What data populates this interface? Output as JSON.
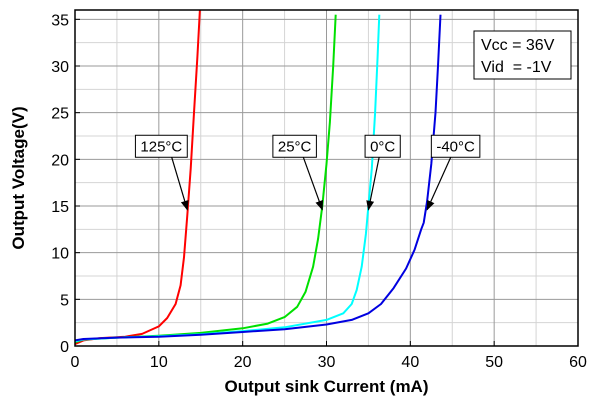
{
  "chart_data": {
    "type": "line",
    "title": "",
    "xlabel": "Output sink Current (mA)",
    "ylabel": "Output Voltage(V)",
    "xlim": [
      0,
      60
    ],
    "ylim": [
      0,
      36
    ],
    "x_ticks": [
      0,
      10,
      20,
      30,
      40,
      50,
      60
    ],
    "y_ticks": [
      0,
      5,
      10,
      15,
      20,
      25,
      30,
      35
    ],
    "x_minor_step": 5,
    "y_minor_step": 2.5,
    "grid": true,
    "legend": "none",
    "info_box": [
      "Vcc = 36V",
      "Vid  = -1V"
    ],
    "series": [
      {
        "label": "125°C",
        "color": "#ff0000",
        "points": [
          [
            0,
            0.2
          ],
          [
            1,
            0.6
          ],
          [
            3,
            0.85
          ],
          [
            6,
            1.0
          ],
          [
            8,
            1.3
          ],
          [
            10,
            2.1
          ],
          [
            11,
            3.0
          ],
          [
            12,
            4.5
          ],
          [
            12.6,
            6.5
          ],
          [
            13,
            9.5
          ],
          [
            13.4,
            14
          ],
          [
            13.8,
            19
          ],
          [
            14.2,
            25
          ],
          [
            14.6,
            31
          ],
          [
            14.9,
            36
          ]
        ]
      },
      {
        "label": "25°C",
        "color": "#00e000",
        "points": [
          [
            0,
            0.4
          ],
          [
            1,
            0.7
          ],
          [
            5,
            0.9
          ],
          [
            10,
            1.1
          ],
          [
            15,
            1.4
          ],
          [
            20,
            1.9
          ],
          [
            23,
            2.4
          ],
          [
            25,
            3.1
          ],
          [
            26.5,
            4.2
          ],
          [
            27.5,
            5.8
          ],
          [
            28.4,
            8.5
          ],
          [
            29,
            11.5
          ],
          [
            29.5,
            15
          ],
          [
            30,
            19.5
          ],
          [
            30.4,
            24
          ],
          [
            30.8,
            30
          ],
          [
            31.1,
            35.5
          ]
        ]
      },
      {
        "label": "0°C",
        "color": "#00ffff",
        "points": [
          [
            0,
            0.5
          ],
          [
            1,
            0.7
          ],
          [
            5,
            0.9
          ],
          [
            10,
            1.05
          ],
          [
            15,
            1.25
          ],
          [
            20,
            1.6
          ],
          [
            25,
            2.0
          ],
          [
            30,
            2.8
          ],
          [
            32,
            3.5
          ],
          [
            33,
            4.5
          ],
          [
            33.6,
            6.0
          ],
          [
            34.2,
            8.5
          ],
          [
            34.7,
            12
          ],
          [
            35,
            15
          ],
          [
            35.4,
            19
          ],
          [
            35.8,
            25
          ],
          [
            36.1,
            31
          ],
          [
            36.3,
            35.5
          ]
        ]
      },
      {
        "label": "-40°C",
        "color": "#0000e0",
        "points": [
          [
            0,
            0.6
          ],
          [
            1,
            0.75
          ],
          [
            5,
            0.9
          ],
          [
            10,
            1.0
          ],
          [
            15,
            1.2
          ],
          [
            20,
            1.5
          ],
          [
            25,
            1.8
          ],
          [
            30,
            2.3
          ],
          [
            33,
            2.8
          ],
          [
            35,
            3.5
          ],
          [
            36.5,
            4.5
          ],
          [
            38,
            6.2
          ],
          [
            39.5,
            8.3
          ],
          [
            40.5,
            10.3
          ],
          [
            41.3,
            12.5
          ],
          [
            41.6,
            13.2
          ],
          [
            42,
            15.5
          ],
          [
            42.5,
            19.5
          ],
          [
            43,
            25
          ],
          [
            43.3,
            30
          ],
          [
            43.6,
            35.5
          ]
        ]
      }
    ],
    "annotations": [
      {
        "label": "125°C",
        "box_x": 10.3,
        "box_y": 21.4,
        "arrow_to_x": 13.4,
        "arrow_to_y": 14.6
      },
      {
        "label": "25°C",
        "box_x": 26.2,
        "box_y": 21.4,
        "arrow_to_x": 29.5,
        "arrow_to_y": 14.6
      },
      {
        "label": "0°C",
        "box_x": 36.7,
        "box_y": 21.4,
        "arrow_to_x": 35.0,
        "arrow_to_y": 14.6
      },
      {
        "label": "-40°C",
        "box_x": 45.4,
        "box_y": 21.4,
        "arrow_to_x": 42.0,
        "arrow_to_y": 14.6
      }
    ]
  }
}
